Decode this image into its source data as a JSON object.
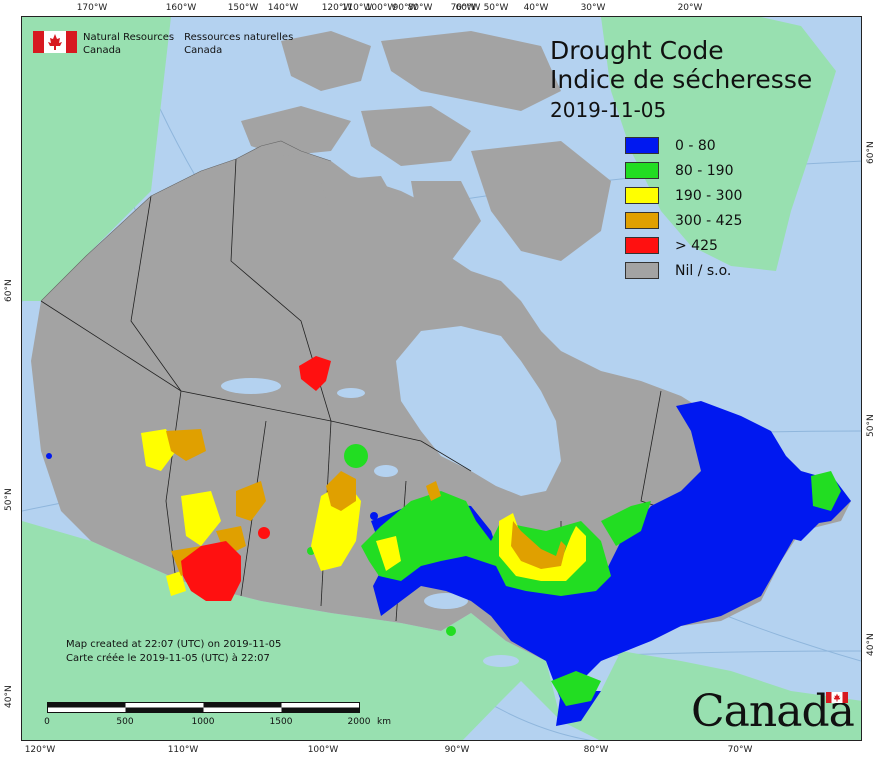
{
  "map": {
    "title_en": "Drought Code",
    "title_fr": "Indice de sécheresse",
    "date": "2019-11-05",
    "agency_en_line1": "Natural Resources",
    "agency_en_line2": "Canada",
    "agency_fr_line1": "Ressources naturelles",
    "agency_fr_line2": "Canada",
    "created_en": "Map created at 22:07 (UTC) on 2019-11-05",
    "created_fr": "Carte créée le 2019-11-05 (UTC) à 22:07",
    "wordmark": "Canada",
    "scale": {
      "labels": [
        "0",
        "500",
        "1000",
        "1500",
        "2000"
      ],
      "unit": "km"
    },
    "top_ticks": [
      "170°W",
      "160°W",
      "150°W",
      "140°W",
      "120°W",
      "110°W",
      "100°W",
      "90°W",
      "80°W",
      "70°W",
      "60°W",
      "50°W",
      "40°W",
      "30°W",
      "20°W"
    ],
    "bottom_ticks": [
      "120°W",
      "110°W",
      "100°W",
      "90°W",
      "80°W",
      "70°W"
    ],
    "left_ticks": [
      "60°N",
      "50°N",
      "40°N"
    ],
    "right_ticks": [
      "60°N",
      "50°N",
      "40°N"
    ]
  },
  "legend": [
    {
      "label": "0 - 80",
      "color": "#0018f0"
    },
    {
      "label": "80 - 190",
      "color": "#22dd22"
    },
    {
      "label": "190 - 300",
      "color": "#ffff00"
    },
    {
      "label": "300 - 425",
      "color": "#e0a000"
    },
    {
      "label": "> 425",
      "color": "#ff1010"
    },
    {
      "label": "Nil / s.o.",
      "color": "#a3a3a3"
    }
  ],
  "colors": {
    "water": "#b4d2f0",
    "non_canada_land": "#98e0b0",
    "nil": "#a3a3a3",
    "border": "#222222"
  }
}
